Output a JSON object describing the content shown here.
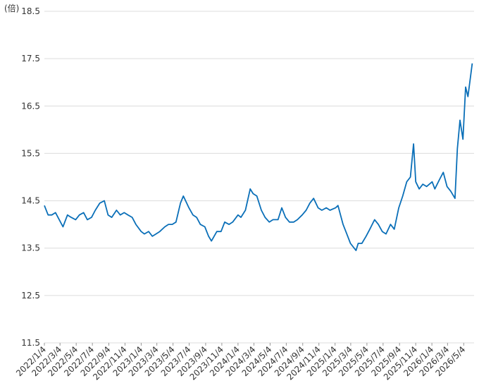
{
  "chart_data": {
    "type": "line",
    "unit_label": "(倍)",
    "x": [
      "2022/1/4",
      "2022/1/18",
      "2022/2/1",
      "2022/2/15",
      "2022/3/1",
      "2022/3/15",
      "2022/4/1",
      "2022/4/15",
      "2022/5/2",
      "2022/5/16",
      "2022/6/1",
      "2022/6/15",
      "2022/7/1",
      "2022/7/15",
      "2022/8/1",
      "2022/8/18",
      "2022/9/1",
      "2022/9/15",
      "2022/10/3",
      "2022/10/17",
      "2022/11/1",
      "2022/11/15",
      "2022/12/1",
      "2022/12/15",
      "2023/1/4",
      "2023/1/16",
      "2023/2/1",
      "2023/2/15",
      "2023/3/1",
      "2023/3/15",
      "2023/4/3",
      "2023/4/17",
      "2023/5/1",
      "2023/5/15",
      "2023/6/1",
      "2023/6/12",
      "2023/7/3",
      "2023/7/18",
      "2023/8/1",
      "2023/8/15",
      "2023/9/1",
      "2023/9/15",
      "2023/9/26",
      "2023/10/16",
      "2023/11/1",
      "2023/11/15",
      "2023/12/1",
      "2023/12/15",
      "2024/1/4",
      "2024/1/15",
      "2024/2/1",
      "2024/2/19",
      "2024/3/1",
      "2024/3/15",
      "2024/4/1",
      "2024/4/15",
      "2024/5/1",
      "2024/5/15",
      "2024/6/3",
      "2024/6/17",
      "2024/7/1",
      "2024/7/16",
      "2024/8/1",
      "2024/8/15",
      "2024/9/2",
      "2024/9/17",
      "2024/10/1",
      "2024/10/15",
      "2024/11/1",
      "2024/11/15",
      "2024/12/2",
      "2024/12/16",
      "2025/1/6",
      "2025/1/15",
      "2025/2/3",
      "2025/2/17",
      "2025/3/3",
      "2025/3/24",
      "2025/4/1",
      "2025/4/15",
      "2025/5/1",
      "2025/5/15",
      "2025/6/2",
      "2025/6/16",
      "2025/7/1",
      "2025/7/15",
      "2025/8/1",
      "2025/8/15",
      "2025/9/1",
      "2025/9/16",
      "2025/10/1",
      "2025/10/15",
      "2025/10/27",
      "2025/11/4",
      "2025/11/17",
      "2025/12/1",
      "2025/12/15",
      "2026/1/5",
      "2026/1/15",
      "2026/2/2",
      "2026/2/16",
      "2026/3/2",
      "2026/3/16",
      "2026/4/1",
      "2026/4/10",
      "2026/4/20",
      "2026/5/1",
      "2026/5/11",
      "2026/5/20",
      "2026/6/5"
    ],
    "series": [
      {
        "color": "#0a6fb8",
        "values": [
          14.4,
          14.2,
          14.2,
          14.25,
          14.1,
          13.95,
          14.2,
          14.15,
          14.1,
          14.2,
          14.25,
          14.1,
          14.15,
          14.3,
          14.45,
          14.5,
          14.2,
          14.15,
          14.3,
          14.2,
          14.25,
          14.2,
          14.15,
          14.0,
          13.85,
          13.8,
          13.85,
          13.75,
          13.8,
          13.85,
          13.95,
          14.0,
          14.0,
          14.05,
          14.45,
          14.6,
          14.35,
          14.2,
          14.15,
          14.0,
          13.95,
          13.75,
          13.65,
          13.85,
          13.85,
          14.05,
          14.0,
          14.05,
          14.2,
          14.15,
          14.3,
          14.75,
          14.65,
          14.6,
          14.3,
          14.15,
          14.05,
          14.1,
          14.1,
          14.35,
          14.15,
          14.05,
          14.05,
          14.1,
          14.2,
          14.3,
          14.45,
          14.55,
          14.35,
          14.3,
          14.35,
          14.3,
          14.35,
          14.4,
          14.0,
          13.8,
          13.6,
          13.45,
          13.6,
          13.6,
          13.75,
          13.9,
          14.1,
          14.0,
          13.85,
          13.8,
          14.0,
          13.9,
          14.35,
          14.6,
          14.9,
          15.0,
          15.7,
          14.9,
          14.75,
          14.85,
          14.8,
          14.9,
          14.75,
          14.95,
          15.1,
          14.8,
          14.7,
          14.55,
          15.6,
          16.2,
          15.8,
          16.9,
          16.7,
          17.4
        ]
      }
    ],
    "xlim": [
      "2022/1/4",
      "2026/6/12"
    ],
    "xticks": [
      "2022/1/4",
      "2022/3/4",
      "2022/5/4",
      "2022/7/4",
      "2022/9/4",
      "2022/11/4",
      "2023/1/4",
      "2023/3/4",
      "2023/5/4",
      "2023/7/4",
      "2023/9/4",
      "2023/11/4",
      "2024/1/4",
      "2024/3/4",
      "2024/5/4",
      "2024/7/4",
      "2024/9/4",
      "2024/11/4",
      "2025/1/4",
      "2025/3/4",
      "2025/5/4",
      "2025/7/4",
      "2025/9/4",
      "2025/11/4",
      "2026/1/4",
      "2026/3/4",
      "2026/5/4"
    ],
    "ylim": [
      11.5,
      18.5
    ],
    "yticks": [
      11.5,
      12.5,
      13.5,
      14.5,
      15.5,
      16.5,
      17.5,
      18.5
    ],
    "grid": true
  }
}
